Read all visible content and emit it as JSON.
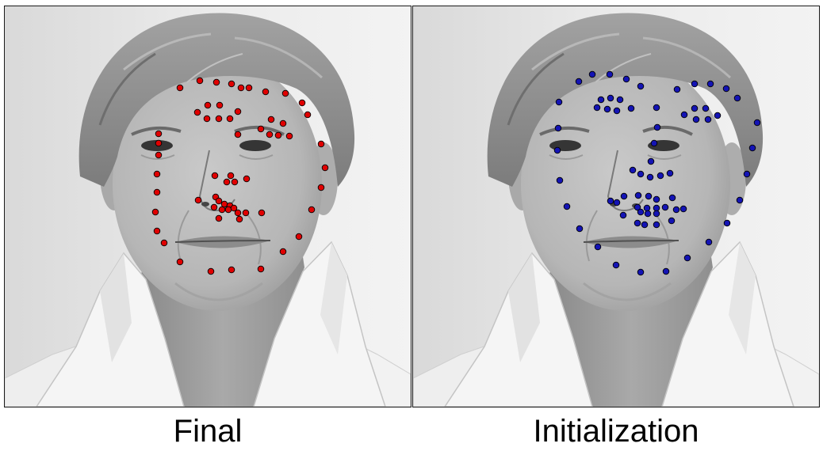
{
  "panels": [
    {
      "caption": "Final",
      "point_color": "#e00000"
    },
    {
      "caption": "Initialization",
      "point_color": "#1414b4"
    }
  ],
  "point_outline_color": "#000000"
}
